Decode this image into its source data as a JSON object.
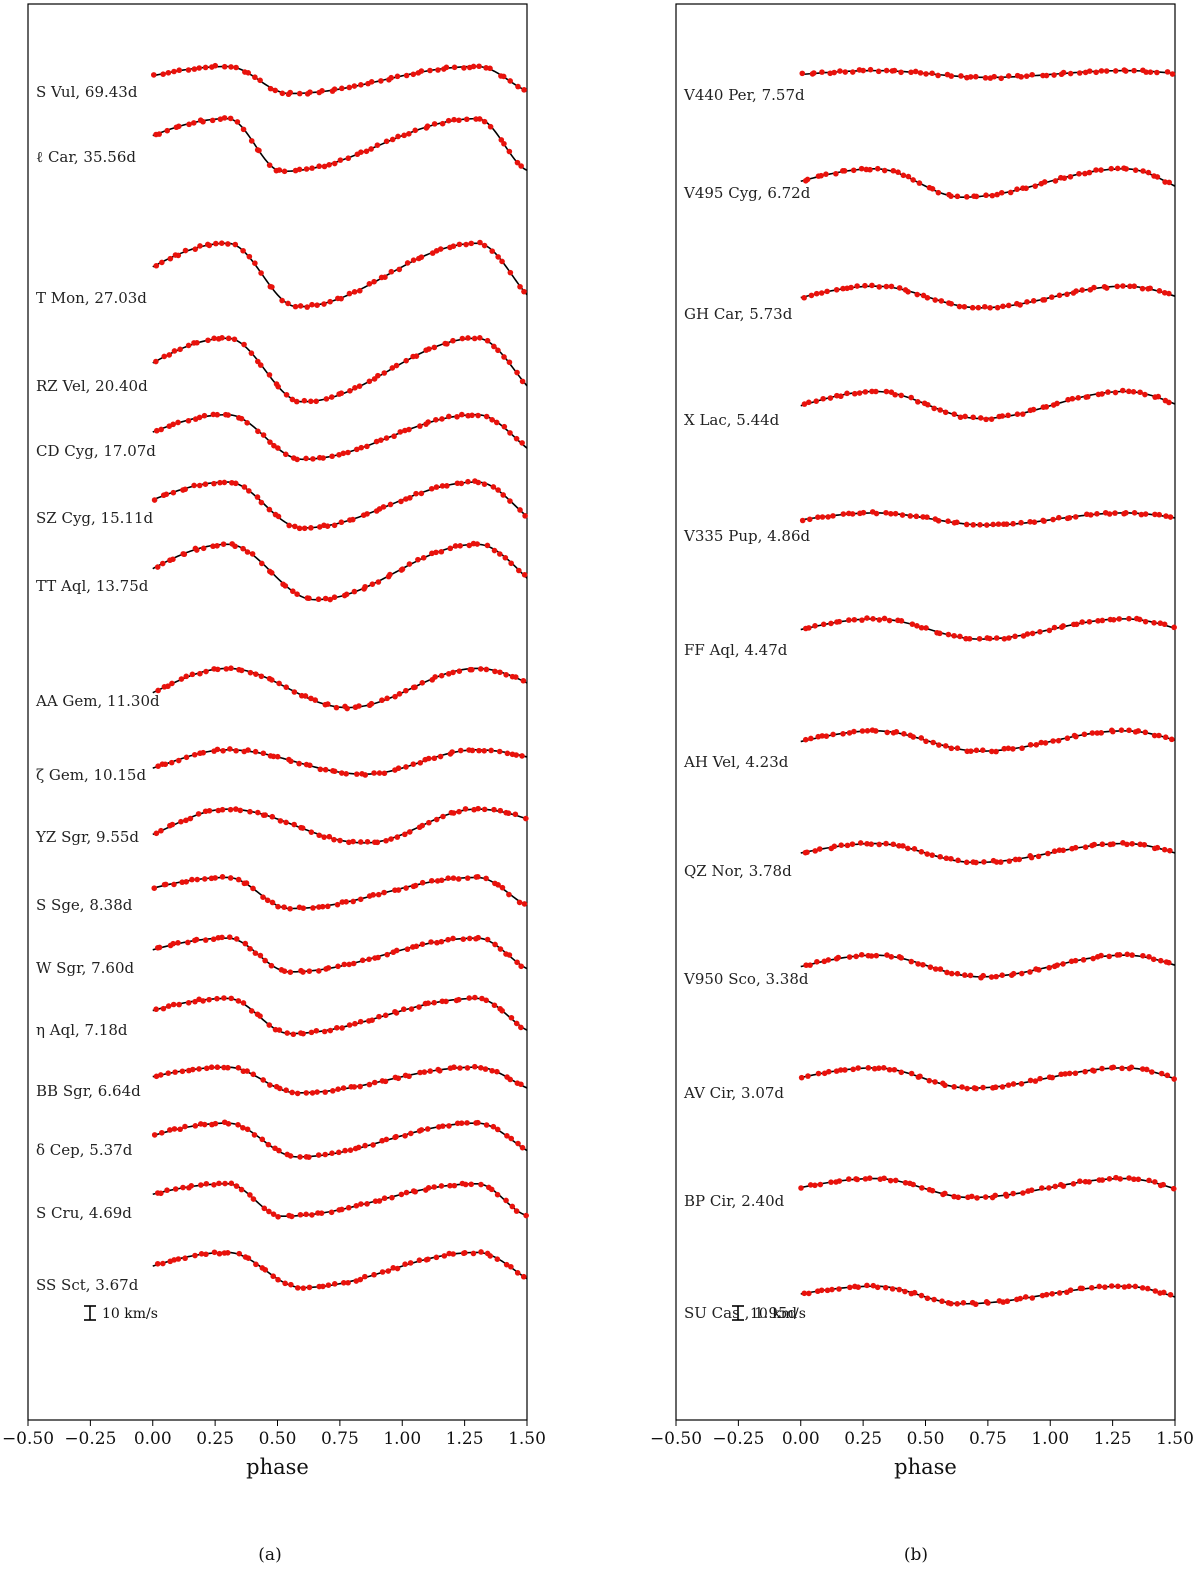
{
  "chart_data": [
    {
      "type": "line",
      "caption": "(a)",
      "xlabel": "phase",
      "ylabel": "",
      "xlim": [
        -0.5,
        1.5
      ],
      "xticks": [
        "−0.50",
        "−0.25",
        "0.00",
        "0.25",
        "0.50",
        "0.75",
        "1.00",
        "1.25",
        "1.50"
      ],
      "scale_bar": "10 km/s",
      "series": [
        {
          "name": "S Vul, 69.43d",
          "min_phase": 0.55,
          "amplitude": 20
        },
        {
          "name": "ℓ Car, 35.56d",
          "min_phase": 0.52,
          "amplitude": 39
        },
        {
          "name": "T Mon, 27.03d",
          "min_phase": 0.58,
          "amplitude": 47
        },
        {
          "name": "RZ Vel, 20.40d",
          "min_phase": 0.6,
          "amplitude": 47
        },
        {
          "name": "CD Cyg, 17.07d",
          "min_phase": 0.6,
          "amplitude": 33
        },
        {
          "name": "SZ Cyg, 15.11d",
          "min_phase": 0.6,
          "amplitude": 34
        },
        {
          "name": "TT Aql, 13.75d",
          "min_phase": 0.65,
          "amplitude": 41
        },
        {
          "name": "AA Gem, 11.30d",
          "min_phase": 0.78,
          "amplitude": 29
        },
        {
          "name": "ζ Gem, 10.15d",
          "min_phase": 0.85,
          "amplitude": 18
        },
        {
          "name": "YZ Sgr, 9.55d",
          "min_phase": 0.85,
          "amplitude": 25
        },
        {
          "name": "S Sge, 8.38d",
          "min_phase": 0.55,
          "amplitude": 23
        },
        {
          "name": "W Sgr, 7.60d",
          "min_phase": 0.55,
          "amplitude": 25
        },
        {
          "name": "η Aql, 7.18d",
          "min_phase": 0.55,
          "amplitude": 26
        },
        {
          "name": "BB Sgr, 6.64d",
          "min_phase": 0.58,
          "amplitude": 19
        },
        {
          "name": "δ Cep, 5.37d",
          "min_phase": 0.58,
          "amplitude": 25
        },
        {
          "name": "S Cru, 4.69d",
          "min_phase": 0.52,
          "amplitude": 24
        },
        {
          "name": "SS Sct, 3.67d",
          "min_phase": 0.6,
          "amplitude": 26
        }
      ]
    },
    {
      "type": "line",
      "caption": "(b)",
      "xlabel": "phase",
      "ylabel": "",
      "xlim": [
        -0.5,
        1.5
      ],
      "xticks": [
        "−0.50",
        "−0.25",
        "0.00",
        "0.25",
        "0.50",
        "0.75",
        "1.00",
        "1.25",
        "1.50"
      ],
      "scale_bar": "10 km/s",
      "series": [
        {
          "name": "V440 Per, 7.57d",
          "min_phase": 0.75,
          "amplitude": 5
        },
        {
          "name": "V495 Cyg, 6.72d",
          "min_phase": 0.65,
          "amplitude": 21
        },
        {
          "name": "GH Car, 5.73d",
          "min_phase": 0.72,
          "amplitude": 16
        },
        {
          "name": "X Lac, 5.44d",
          "min_phase": 0.72,
          "amplitude": 20
        },
        {
          "name": "V335 Pup, 4.86d",
          "min_phase": 0.75,
          "amplitude": 9
        },
        {
          "name": "FF Aql, 4.47d",
          "min_phase": 0.72,
          "amplitude": 15
        },
        {
          "name": "AH Vel, 4.23d",
          "min_phase": 0.72,
          "amplitude": 15
        },
        {
          "name": "QZ Nor, 3.78d",
          "min_phase": 0.7,
          "amplitude": 14
        },
        {
          "name": "V950 Sco, 3.38d",
          "min_phase": 0.72,
          "amplitude": 16
        },
        {
          "name": "AV Cir, 3.07d",
          "min_phase": 0.68,
          "amplitude": 15
        },
        {
          "name": "BP Cir, 2.40d",
          "min_phase": 0.68,
          "amplitude": 14
        },
        {
          "name": "SU Cas , 1.95d",
          "min_phase": 0.65,
          "amplitude": 13
        }
      ]
    }
  ]
}
